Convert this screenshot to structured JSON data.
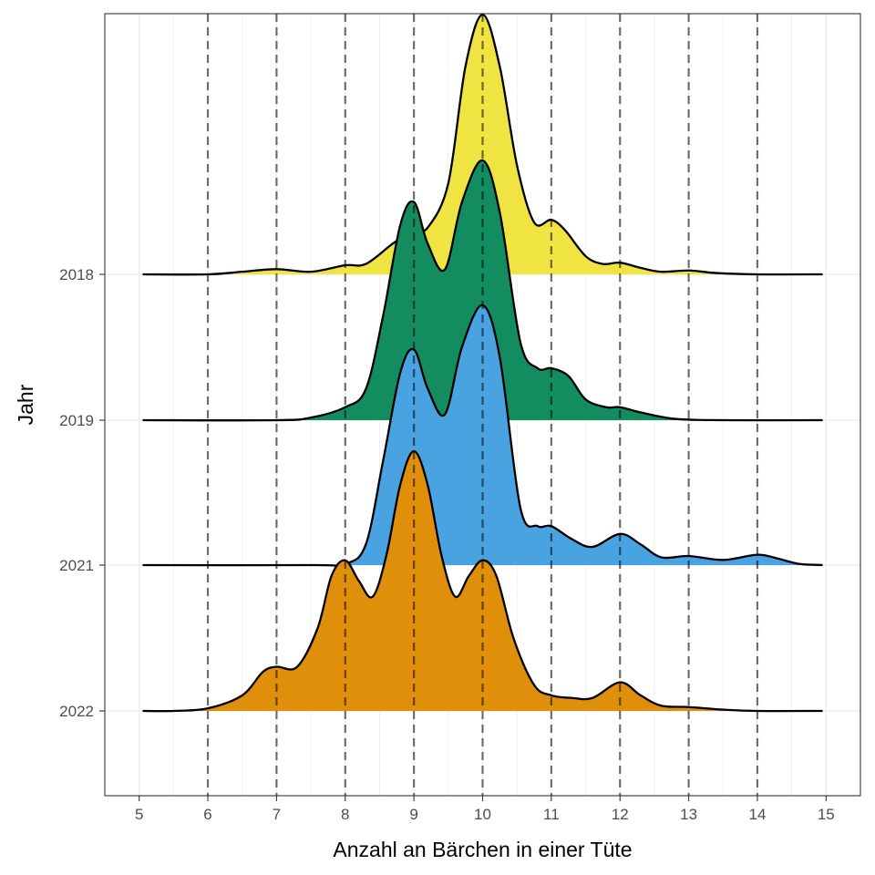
{
  "chart_data": {
    "type": "ridgeline",
    "xlabel": "Anzahl an Bärchen in einer Tüte",
    "ylabel": "Jahr",
    "xlim": [
      4.5,
      15.5
    ],
    "x_ticks": [
      5,
      6,
      7,
      8,
      9,
      10,
      11,
      12,
      13,
      14,
      15
    ],
    "x_range": [
      5.05,
      14.95
    ],
    "dashed_reference_lines": [
      6,
      7,
      8,
      9,
      10,
      11,
      12,
      13,
      14
    ],
    "grid": true,
    "categories": [
      "2018",
      "2019",
      "2021",
      "2022"
    ],
    "series": [
      {
        "name": "2018",
        "color": "#F0E442",
        "curve": [
          [
            5.05,
            0
          ],
          [
            6.0,
            0
          ],
          [
            6.5,
            0.01
          ],
          [
            7.0,
            0.02
          ],
          [
            7.5,
            0.01
          ],
          [
            8.0,
            0.035
          ],
          [
            8.3,
            0.04
          ],
          [
            8.7,
            0.12
          ],
          [
            9.0,
            0.17
          ],
          [
            9.2,
            0.18
          ],
          [
            9.5,
            0.35
          ],
          [
            9.75,
            0.8
          ],
          [
            10.0,
            1.0
          ],
          [
            10.25,
            0.8
          ],
          [
            10.5,
            0.42
          ],
          [
            10.75,
            0.2
          ],
          [
            11.0,
            0.21
          ],
          [
            11.2,
            0.17
          ],
          [
            11.5,
            0.07
          ],
          [
            11.75,
            0.04
          ],
          [
            12.0,
            0.045
          ],
          [
            12.3,
            0.025
          ],
          [
            12.6,
            0.01
          ],
          [
            13.0,
            0.015
          ],
          [
            13.4,
            0.005
          ],
          [
            14.0,
            0
          ],
          [
            14.95,
            0
          ]
        ]
      },
      {
        "name": "2019",
        "color": "#138D5F",
        "curve": [
          [
            5.05,
            0
          ],
          [
            7.0,
            0
          ],
          [
            7.5,
            0.01
          ],
          [
            8.0,
            0.05
          ],
          [
            8.3,
            0.12
          ],
          [
            8.55,
            0.4
          ],
          [
            8.8,
            0.75
          ],
          [
            9.0,
            0.84
          ],
          [
            9.2,
            0.68
          ],
          [
            9.45,
            0.58
          ],
          [
            9.7,
            0.84
          ],
          [
            10.0,
            1.0
          ],
          [
            10.25,
            0.8
          ],
          [
            10.55,
            0.3
          ],
          [
            10.8,
            0.2
          ],
          [
            11.0,
            0.2
          ],
          [
            11.25,
            0.17
          ],
          [
            11.5,
            0.08
          ],
          [
            11.8,
            0.05
          ],
          [
            12.0,
            0.05
          ],
          [
            12.3,
            0.03
          ],
          [
            12.8,
            0.005
          ],
          [
            13.5,
            0
          ],
          [
            14.95,
            0
          ]
        ]
      },
      {
        "name": "2021",
        "color": "#49A3E0",
        "curve": [
          [
            5.05,
            0
          ],
          [
            7.5,
            0
          ],
          [
            8.0,
            0.005
          ],
          [
            8.3,
            0.08
          ],
          [
            8.55,
            0.4
          ],
          [
            8.8,
            0.74
          ],
          [
            9.0,
            0.83
          ],
          [
            9.2,
            0.68
          ],
          [
            9.45,
            0.58
          ],
          [
            9.7,
            0.84
          ],
          [
            10.0,
            1.0
          ],
          [
            10.25,
            0.8
          ],
          [
            10.55,
            0.22
          ],
          [
            10.8,
            0.15
          ],
          [
            11.0,
            0.15
          ],
          [
            11.3,
            0.1
          ],
          [
            11.6,
            0.07
          ],
          [
            12.0,
            0.12
          ],
          [
            12.3,
            0.08
          ],
          [
            12.6,
            0.03
          ],
          [
            13.0,
            0.035
          ],
          [
            13.5,
            0.02
          ],
          [
            14.0,
            0.04
          ],
          [
            14.3,
            0.025
          ],
          [
            14.6,
            0.005
          ],
          [
            14.95,
            0
          ]
        ]
      },
      {
        "name": "2022",
        "color": "#E08F0B",
        "curve": [
          [
            5.05,
            0
          ],
          [
            5.5,
            0
          ],
          [
            6.0,
            0.01
          ],
          [
            6.5,
            0.06
          ],
          [
            6.8,
            0.15
          ],
          [
            7.0,
            0.17
          ],
          [
            7.3,
            0.17
          ],
          [
            7.6,
            0.32
          ],
          [
            7.8,
            0.52
          ],
          [
            8.0,
            0.58
          ],
          [
            8.2,
            0.5
          ],
          [
            8.4,
            0.44
          ],
          [
            8.6,
            0.6
          ],
          [
            8.8,
            0.87
          ],
          [
            9.0,
            1.0
          ],
          [
            9.2,
            0.87
          ],
          [
            9.4,
            0.6
          ],
          [
            9.6,
            0.44
          ],
          [
            9.8,
            0.52
          ],
          [
            10.0,
            0.58
          ],
          [
            10.2,
            0.52
          ],
          [
            10.45,
            0.28
          ],
          [
            10.75,
            0.1
          ],
          [
            11.0,
            0.06
          ],
          [
            11.3,
            0.05
          ],
          [
            11.6,
            0.05
          ],
          [
            12.0,
            0.11
          ],
          [
            12.3,
            0.06
          ],
          [
            12.6,
            0.02
          ],
          [
            13.0,
            0.015
          ],
          [
            13.5,
            0.005
          ],
          [
            14.0,
            0
          ],
          [
            14.95,
            0
          ]
        ]
      }
    ]
  }
}
